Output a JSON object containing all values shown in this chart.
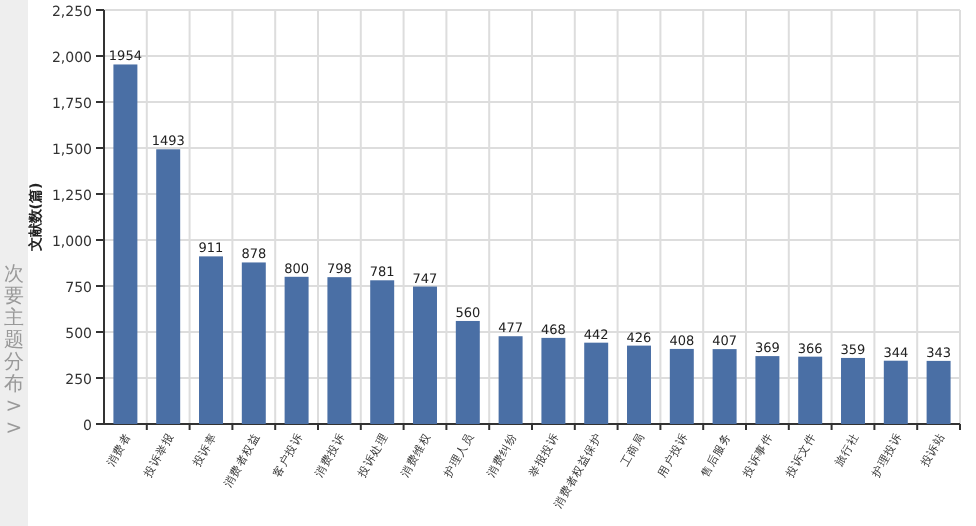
{
  "chart_data": {
    "type": "bar",
    "ylabel": "文献数(篇)",
    "annotations": [
      "次要主题分布 >>"
    ],
    "categories": [
      "消费者",
      "投诉举报",
      "投诉率",
      "消费者权益",
      "客户投诉",
      "消费投诉",
      "投诉处理",
      "消费维权",
      "护理人员",
      "消费纠纷",
      "举报投诉",
      "消费者权益保护",
      "工商局",
      "用户投诉",
      "售后服务",
      "投诉事件",
      "投诉文件",
      "旅行社",
      "护理投诉",
      "投诉站"
    ],
    "values": [
      1954,
      1493,
      911,
      878,
      800,
      798,
      781,
      747,
      560,
      477,
      468,
      442,
      426,
      408,
      407,
      369,
      366,
      359,
      344,
      343
    ],
    "color": "#4a6fa5",
    "data_labels": true,
    "grid": true,
    "ylim": [
      0,
      2250
    ],
    "yticks": [
      0,
      {
        "value": 250,
        "label": "250"
      },
      {
        "value": 500,
        "label": "500"
      },
      {
        "value": 750,
        "label": "750"
      },
      {
        "value": 1000,
        "label": "1,000"
      },
      {
        "value": 1250,
        "label": "1,250"
      },
      {
        "value": 1500,
        "label": "1,500"
      },
      {
        "value": 1750,
        "label": "1,750"
      },
      {
        "value": 2000,
        "label": "2,000"
      },
      {
        "value": 2250,
        "label": "2,250"
      }
    ]
  }
}
